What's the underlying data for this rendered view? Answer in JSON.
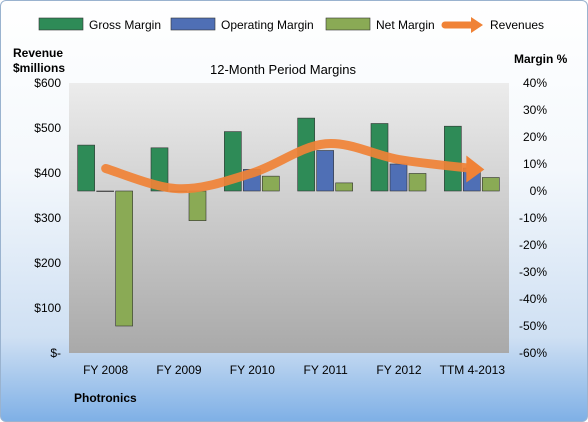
{
  "chart_data": {
    "type": "bar",
    "title": "12-Month Period Margins",
    "categories": [
      "FY 2008",
      "FY 2009",
      "FY 2010",
      "FY 2011",
      "FY 2012",
      "TTM 4-2013"
    ],
    "series": [
      {
        "name": "Gross Margin",
        "axis": "right",
        "values": [
          17,
          16,
          22,
          27,
          25,
          24
        ],
        "color": "#2e8b57"
      },
      {
        "name": "Operating Margin",
        "axis": "right",
        "values": [
          0,
          0,
          8,
          15,
          10,
          8.5
        ],
        "color": "#4f6fb5"
      },
      {
        "name": "Net Margin",
        "axis": "right",
        "values": [
          -50,
          -11,
          5.5,
          3,
          6.5,
          5
        ],
        "color": "#8aaa55"
      },
      {
        "name": "Revenues",
        "axis": "left",
        "type": "line",
        "values": [
          410,
          365,
          400,
          465,
          430,
          410
        ],
        "color": "#f08236"
      }
    ],
    "y_left": {
      "label_line1": "Revenue",
      "label_line2": "$millions",
      "ticks": [
        "$-",
        "$100",
        "$200",
        "$300",
        "$400",
        "$500",
        "$600"
      ],
      "range": [
        0,
        600
      ]
    },
    "y_right": {
      "label": "Margin %",
      "ticks": [
        "-60%",
        "-50%",
        "-40%",
        "-30%",
        "-20%",
        "-10%",
        "0%",
        "10%",
        "20%",
        "30%",
        "40%"
      ],
      "range": [
        -60,
        40
      ]
    },
    "legend_position": "top",
    "grid": false,
    "footer": "Photronics"
  }
}
